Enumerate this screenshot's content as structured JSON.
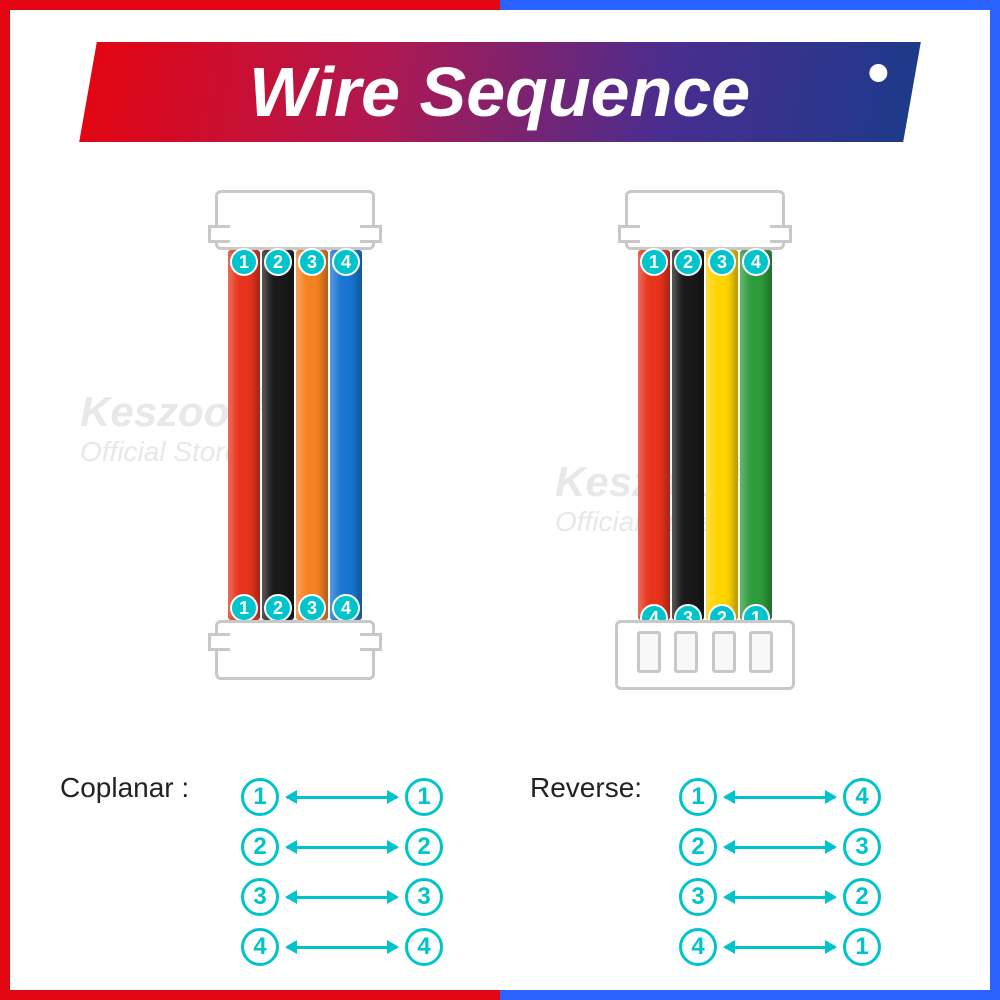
{
  "title": "Wire Sequence",
  "border_colors": {
    "left": "#e30613",
    "right": "#2962ff"
  },
  "banner_gradient": [
    "#e30613",
    "#b01850",
    "#4a2d8f",
    "#1e3a8a"
  ],
  "watermark": {
    "brand": "Keszoox",
    "sub": "Official Store",
    "reg": "®"
  },
  "cables": {
    "coplanar": {
      "label": "Coplanar :",
      "wire_colors": [
        "#e8341c",
        "#1a1a1a",
        "#f58220",
        "#1976d2"
      ],
      "pins_top": [
        "1",
        "2",
        "3",
        "4"
      ],
      "pins_bottom": [
        "1",
        "2",
        "3",
        "4"
      ],
      "mapping": [
        [
          "1",
          "1"
        ],
        [
          "2",
          "2"
        ],
        [
          "3",
          "3"
        ],
        [
          "4",
          "4"
        ]
      ]
    },
    "reverse": {
      "label": "Reverse:",
      "wire_colors": [
        "#e8341c",
        "#1a1a1a",
        "#ffd400",
        "#2e9b3a"
      ],
      "pins_top": [
        "1",
        "2",
        "3",
        "4"
      ],
      "pins_bottom": [
        "4",
        "3",
        "2",
        "1"
      ],
      "mapping": [
        [
          "1",
          "4"
        ],
        [
          "2",
          "3"
        ],
        [
          "3",
          "2"
        ],
        [
          "4",
          "1"
        ]
      ]
    }
  },
  "style": {
    "pin_badge_bg": "#00c4cc",
    "map_badge_border": "#00c4cc",
    "title_fontsize": 70,
    "label_fontsize": 28,
    "badge_fontsize": 24,
    "connector_border": "#c8c8c8",
    "background": "#ffffff"
  }
}
